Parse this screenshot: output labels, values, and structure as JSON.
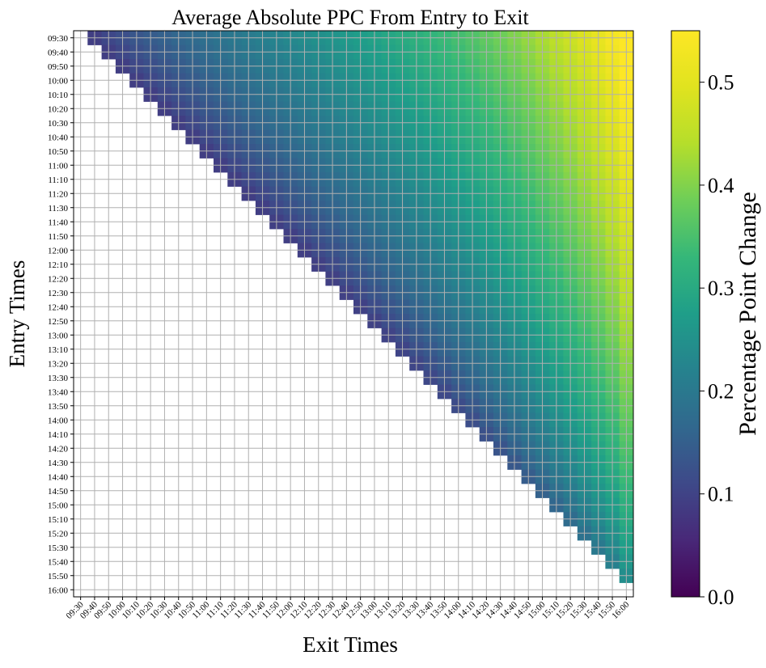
{
  "chart_data": {
    "type": "heatmap",
    "title": "Average Absolute PPC From Entry to Exit",
    "xlabel": "Exit Times",
    "ylabel": "Entry Times",
    "colorbar": {
      "label": "Percentage Point Change",
      "range": [
        0.0,
        0.55
      ],
      "ticks": [
        "0.0",
        "0.1",
        "0.2",
        "0.3",
        "0.4",
        "0.5"
      ],
      "colormap": "viridis"
    },
    "x_categories": [
      "09:30",
      "09:40",
      "09:50",
      "10:00",
      "10:10",
      "10:20",
      "10:30",
      "10:40",
      "10:50",
      "11:00",
      "11:10",
      "11:20",
      "11:30",
      "11:40",
      "11:50",
      "12:00",
      "12:10",
      "12:20",
      "12:30",
      "12:40",
      "12:50",
      "13:00",
      "13:10",
      "13:20",
      "13:30",
      "13:40",
      "13:50",
      "14:00",
      "14:10",
      "14:20",
      "14:30",
      "14:40",
      "14:50",
      "15:00",
      "15:10",
      "15:20",
      "15:30",
      "15:40",
      "15:50",
      "16:00"
    ],
    "y_categories": [
      "09:30",
      "09:40",
      "09:50",
      "10:00",
      "10:10",
      "10:20",
      "10:30",
      "10:40",
      "10:50",
      "11:00",
      "11:10",
      "11:20",
      "11:30",
      "11:40",
      "11:50",
      "12:00",
      "12:10",
      "12:20",
      "12:30",
      "12:40",
      "12:50",
      "13:00",
      "13:10",
      "13:20",
      "13:30",
      "13:40",
      "13:50",
      "14:00",
      "14:10",
      "14:20",
      "14:30",
      "14:40",
      "14:50",
      "15:00",
      "15:10",
      "15:20",
      "15:30",
      "15:40",
      "15:50",
      "16:00"
    ],
    "grid": true,
    "cells": "upper triangle only (exit later than entry); value grows with holding time, roughly 0.05 at 10 minutes up to about 0.55 for entry 09:30 to exit 16:00; cells at or below the diagonal are empty",
    "values_sample": {
      "09:30->16:00": 0.55,
      "09:30->12:00": 0.32,
      "12:00->16:00": 0.38,
      "15:50->16:00": 0.13,
      "09:30->09:40": 0.12
    }
  }
}
